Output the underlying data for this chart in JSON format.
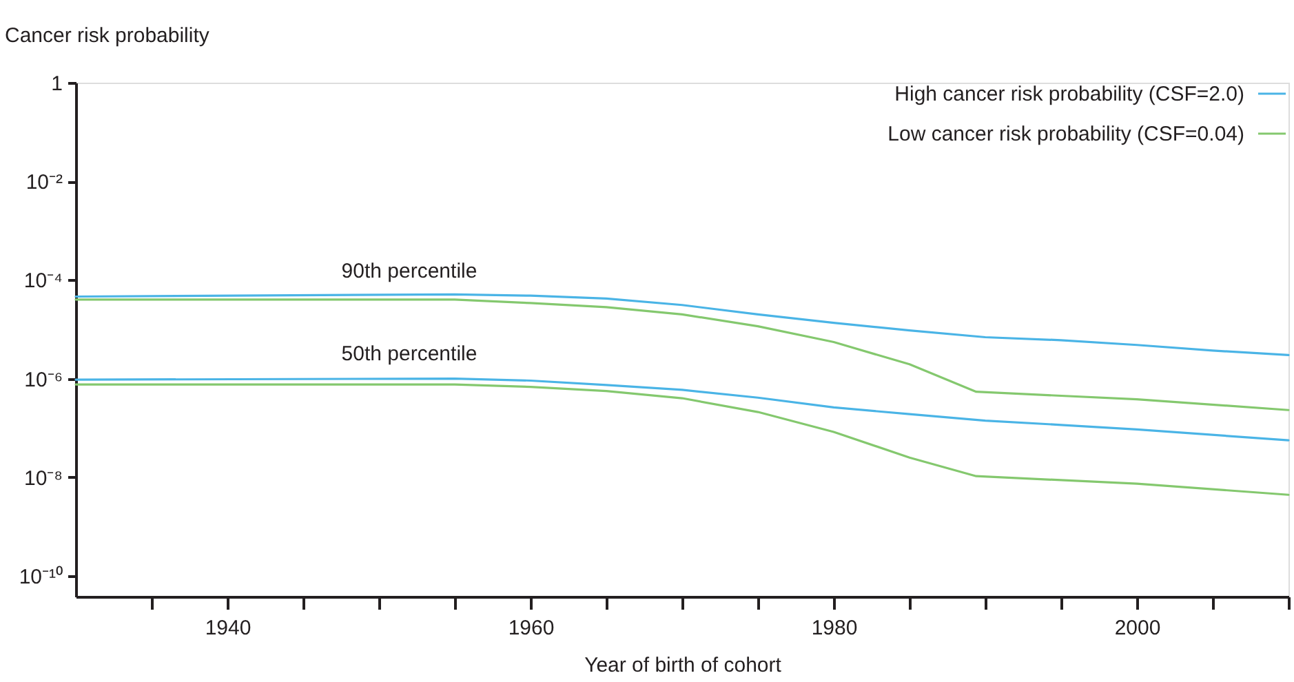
{
  "chart_data": {
    "type": "line",
    "xlabel": "Year of birth of cohort",
    "ylabel": "Cancer risk probability",
    "x": [
      1930,
      1955,
      1960,
      1965,
      1970,
      1975,
      1980,
      1985,
      1990,
      1995,
      2000,
      2005,
      2010
    ],
    "series": [
      {
        "name": "High cancer risk probability (CSF=2.0)",
        "color": "#4ab4e6",
        "values": [
          4.6e-05,
          5.1e-05,
          4.8e-05,
          4.2e-05,
          3.1e-05,
          2e-05,
          1.35e-05,
          9.5e-06,
          6.9e-06,
          6e-06,
          4.8e-06,
          3.7e-06,
          3e-06
        ]
      },
      {
        "name": "Low cancer risk probability (CSF=0.04)",
        "color": "#84c86e",
        "x": [
          1930,
          1955,
          1960,
          1965,
          1970,
          1975,
          1980,
          1985,
          1989.4,
          2000,
          2010
        ],
        "values": [
          4e-05,
          4e-05,
          3.4e-05,
          2.8e-05,
          2e-05,
          1.15e-05,
          5.5e-06,
          1.95e-06,
          5.4e-07,
          3.8e-07,
          2.3e-07
        ]
      },
      {
        "color": "#4ab4e6",
        "x": [
          1930,
          1955,
          1960,
          1965,
          1970,
          1975,
          1980,
          1985,
          1990,
          1995,
          2000,
          2010
        ],
        "values": [
          9.5e-07,
          1e-06,
          9.1e-07,
          7.4e-07,
          5.9e-07,
          4.1e-07,
          2.6e-07,
          1.9e-07,
          1.4e-07,
          1.15e-07,
          9.3e-08,
          5.6e-08
        ]
      },
      {
        "color": "#84c86e",
        "x": [
          1930,
          1955,
          1960,
          1965,
          1970,
          1975,
          1980,
          1985,
          1989.4,
          2000,
          2010
        ],
        "values": [
          7.6e-07,
          7.6e-07,
          6.8e-07,
          5.6e-07,
          4e-07,
          2.1e-07,
          8.3e-08,
          2.5e-08,
          1.05e-08,
          7.4e-09,
          4.4e-09
        ]
      }
    ],
    "annotations": [
      "90th percentile",
      "50th percentile"
    ],
    "log": "y",
    "xlim": [
      1930,
      2010
    ],
    "xticks": [
      {
        "value": 1935,
        "label": null
      },
      1940,
      {
        "value": 1945,
        "label": null
      },
      {
        "value": 1950,
        "label": null
      },
      {
        "value": 1955,
        "label": null
      },
      1960,
      {
        "value": 1965,
        "label": null
      },
      {
        "value": 1970,
        "label": null
      },
      {
        "value": 1975,
        "label": null
      },
      1980,
      {
        "value": 1985,
        "label": null
      },
      {
        "value": 1990,
        "label": null
      },
      {
        "value": 1995,
        "label": null
      },
      2000,
      {
        "value": 2005,
        "label": null
      },
      {
        "value": 2010,
        "label": null
      }
    ],
    "ylim": [
      3.8e-11,
      1
    ],
    "yticks": [
      1,
      {
        "value": 0.01,
        "label": "10⁻²"
      },
      {
        "value": 0.0001,
        "label": "10⁻⁴"
      },
      {
        "value": 1e-06,
        "label": "10⁻⁶"
      },
      {
        "value": 1e-08,
        "label": "10⁻⁸"
      },
      {
        "value": 1e-10,
        "label": "10⁻¹⁰"
      }
    ],
    "grid": false,
    "legend": "top right",
    "line_style": "solid",
    "marker": "none"
  }
}
